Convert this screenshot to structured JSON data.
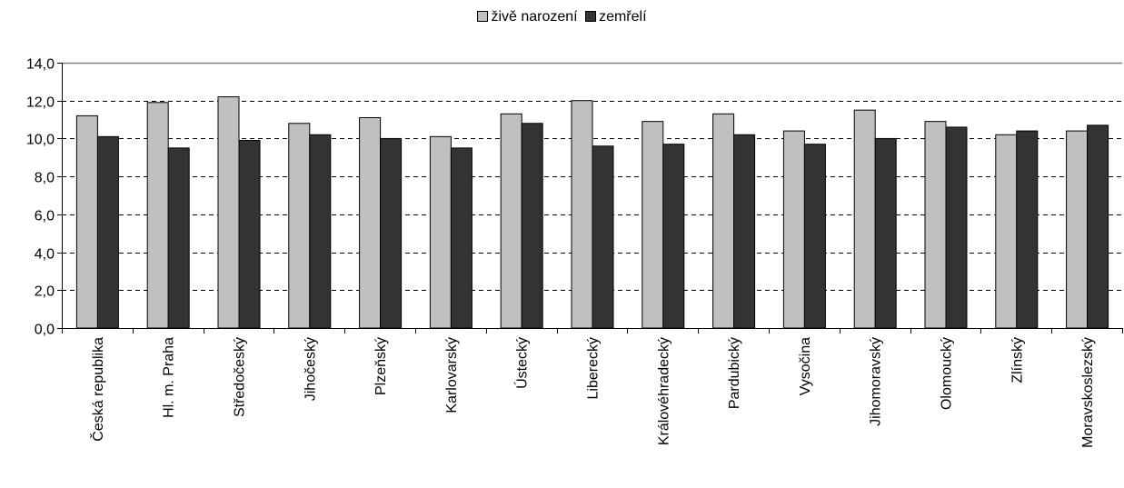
{
  "chart_data": {
    "type": "bar",
    "categories": [
      "Česká republika",
      "Hl. m. Praha",
      "Středočeský",
      "Jihočeský",
      "Plzeňský",
      "Karlovarský",
      "Ústecký",
      "Liberecký",
      "Královéhradecký",
      "Pardubický",
      "Vysočina",
      "Jihomoravský",
      "Olomoucký",
      "Zlínský",
      "Moravskoslezský"
    ],
    "series": [
      {
        "name": "živě narození",
        "color": "#c0c0c0",
        "values": [
          11.2,
          11.9,
          12.2,
          10.8,
          11.1,
          10.1,
          11.3,
          12.0,
          10.9,
          11.3,
          10.4,
          11.5,
          10.9,
          10.2,
          10.4
        ]
      },
      {
        "name": "zemřelí",
        "color": "#333333",
        "values": [
          10.1,
          9.5,
          9.9,
          10.2,
          10.0,
          9.5,
          10.8,
          9.6,
          9.7,
          10.2,
          9.7,
          10.0,
          10.6,
          10.4,
          10.7
        ]
      }
    ],
    "ylim": [
      0,
      14
    ],
    "yticks": [
      "0,0",
      "2,0",
      "4,0",
      "6,0",
      "8,0",
      "10,0",
      "12,0",
      "14,0"
    ],
    "grid": true,
    "legend_position": "top-center"
  }
}
